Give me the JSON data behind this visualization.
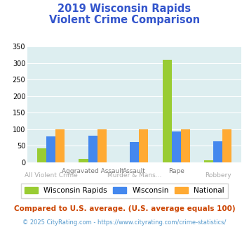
{
  "title_line1": "2019 Wisconsin Rapids",
  "title_line2": "Violent Crime Comparison",
  "wisconsin_rapids": [
    43,
    10,
    0,
    310,
    7
  ],
  "wisconsin": [
    78,
    81,
    62,
    93,
    64
  ],
  "national": [
    100,
    100,
    100,
    100,
    100
  ],
  "color_rapids": "#99cc33",
  "color_wisconsin": "#4488ee",
  "color_national": "#ffaa33",
  "background_plot": "#ddeef0",
  "background_fig": "#ffffff",
  "title_color": "#3355cc",
  "ylim": [
    0,
    350
  ],
  "yticks": [
    0,
    50,
    100,
    150,
    200,
    250,
    300,
    350
  ],
  "grid_color": "#ffffff",
  "legend_labels": [
    "Wisconsin Rapids",
    "Wisconsin",
    "National"
  ],
  "x_top_labels": [
    "",
    "Aggravated Assault",
    "Assault",
    "Rape",
    ""
  ],
  "x_bottom_labels": [
    "All Violent Crime",
    "",
    "Murder & Mans...",
    "",
    "Robbery"
  ],
  "footnote1": "Compared to U.S. average. (U.S. average equals 100)",
  "footnote2": "© 2025 CityRating.com - https://www.cityrating.com/crime-statistics/",
  "footnote1_color": "#cc4400",
  "footnote2_color": "#5599cc"
}
